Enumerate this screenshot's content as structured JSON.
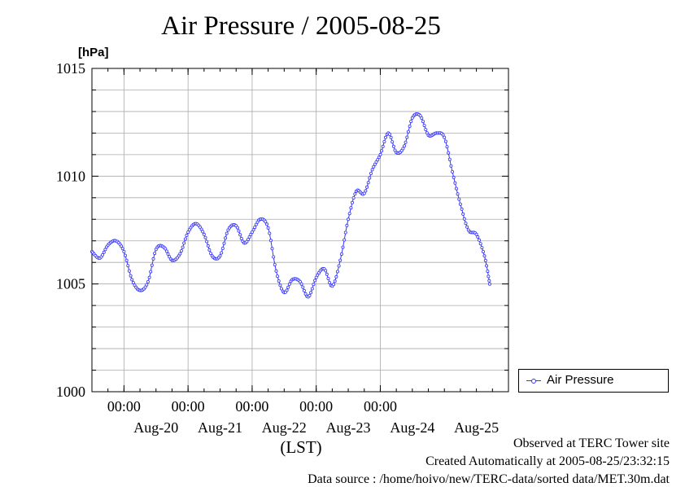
{
  "title": "Air Pressure / 2005-08-25",
  "colors": {
    "series": "#3333ff",
    "grid": "#aaaaaa",
    "axis": "#000000"
  },
  "chart_data": {
    "type": "line",
    "title": "Air Pressure / 2005-08-25",
    "ylabel": "[hPa]",
    "xlabel": "(LST)",
    "ylim": [
      1000,
      1015
    ],
    "xlim": [
      "2005-08-19T12:00",
      "2005-08-25T24:00"
    ],
    "y_ticks": [
      "1000",
      "1005",
      "1010",
      "1015"
    ],
    "x_time_ticks": [
      {
        "time": "2005-08-20T00:00",
        "label": "00:00"
      },
      {
        "time": "2005-08-21T00:00",
        "label": "00:00"
      },
      {
        "time": "2005-08-22T00:00",
        "label": "00:00"
      },
      {
        "time": "2005-08-23T00:00",
        "label": "00:00"
      },
      {
        "time": "2005-08-24T00:00",
        "label": "00:00"
      }
    ],
    "x_date_labels": [
      {
        "time": "2005-08-20T12:00",
        "label": "Aug-20"
      },
      {
        "time": "2005-08-21T12:00",
        "label": "Aug-21"
      },
      {
        "time": "2005-08-22T12:00",
        "label": "Aug-22"
      },
      {
        "time": "2005-08-23T12:00",
        "label": "Aug-23"
      },
      {
        "time": "2005-08-24T12:00",
        "label": "Aug-24"
      },
      {
        "time": "2005-08-25T12:00",
        "label": "Aug-25"
      }
    ],
    "grid": true,
    "legend": "right",
    "series": [
      {
        "name": "Air Pressure",
        "points": [
          {
            "x": "2005-08-19T12:00",
            "y": 1006.5
          },
          {
            "x": "2005-08-19T15:00",
            "y": 1006.2
          },
          {
            "x": "2005-08-19T18:00",
            "y": 1006.8
          },
          {
            "x": "2005-08-19T21:00",
            "y": 1007.0
          },
          {
            "x": "2005-08-20T00:00",
            "y": 1006.5
          },
          {
            "x": "2005-08-20T03:00",
            "y": 1005.2
          },
          {
            "x": "2005-08-20T06:00",
            "y": 1004.7
          },
          {
            "x": "2005-08-20T09:00",
            "y": 1005.1
          },
          {
            "x": "2005-08-20T12:00",
            "y": 1006.6
          },
          {
            "x": "2005-08-20T15:00",
            "y": 1006.7
          },
          {
            "x": "2005-08-20T18:00",
            "y": 1006.1
          },
          {
            "x": "2005-08-20T21:00",
            "y": 1006.4
          },
          {
            "x": "2005-08-21T00:00",
            "y": 1007.4
          },
          {
            "x": "2005-08-21T03:00",
            "y": 1007.8
          },
          {
            "x": "2005-08-21T06:00",
            "y": 1007.3
          },
          {
            "x": "2005-08-21T09:00",
            "y": 1006.3
          },
          {
            "x": "2005-08-21T12:00",
            "y": 1006.3
          },
          {
            "x": "2005-08-21T15:00",
            "y": 1007.5
          },
          {
            "x": "2005-08-21T18:00",
            "y": 1007.7
          },
          {
            "x": "2005-08-21T21:00",
            "y": 1006.9
          },
          {
            "x": "2005-08-22T00:00",
            "y": 1007.4
          },
          {
            "x": "2005-08-22T03:00",
            "y": 1008.0
          },
          {
            "x": "2005-08-22T06:00",
            "y": 1007.6
          },
          {
            "x": "2005-08-22T09:00",
            "y": 1005.6
          },
          {
            "x": "2005-08-22T12:00",
            "y": 1004.6
          },
          {
            "x": "2005-08-22T15:00",
            "y": 1005.2
          },
          {
            "x": "2005-08-22T18:00",
            "y": 1005.1
          },
          {
            "x": "2005-08-22T21:00",
            "y": 1004.4
          },
          {
            "x": "2005-08-23T00:00",
            "y": 1005.3
          },
          {
            "x": "2005-08-23T03:00",
            "y": 1005.7
          },
          {
            "x": "2005-08-23T06:00",
            "y": 1004.9
          },
          {
            "x": "2005-08-23T09:00",
            "y": 1006.1
          },
          {
            "x": "2005-08-23T12:00",
            "y": 1008.0
          },
          {
            "x": "2005-08-23T15:00",
            "y": 1009.3
          },
          {
            "x": "2005-08-23T18:00",
            "y": 1009.2
          },
          {
            "x": "2005-08-23T21:00",
            "y": 1010.3
          },
          {
            "x": "2005-08-24T00:00",
            "y": 1011.0
          },
          {
            "x": "2005-08-24T03:00",
            "y": 1012.0
          },
          {
            "x": "2005-08-24T06:00",
            "y": 1011.1
          },
          {
            "x": "2005-08-24T09:00",
            "y": 1011.4
          },
          {
            "x": "2005-08-24T12:00",
            "y": 1012.7
          },
          {
            "x": "2005-08-24T15:00",
            "y": 1012.8
          },
          {
            "x": "2005-08-24T18:00",
            "y": 1011.9
          },
          {
            "x": "2005-08-24T21:00",
            "y": 1012.0
          },
          {
            "x": "2005-08-25T00:00",
            "y": 1011.8
          },
          {
            "x": "2005-08-25T03:00",
            "y": 1010.2
          },
          {
            "x": "2005-08-25T06:00",
            "y": 1008.7
          },
          {
            "x": "2005-08-25T09:00",
            "y": 1007.5
          },
          {
            "x": "2005-08-25T12:00",
            "y": 1007.3
          },
          {
            "x": "2005-08-25T15:00",
            "y": 1006.3
          },
          {
            "x": "2005-08-25T17:00",
            "y": 1005.0
          }
        ]
      }
    ]
  },
  "legend": {
    "label": "Air Pressure"
  },
  "footer": {
    "site": "Observed at TERC Tower site",
    "created": "Created Automatically at 2005-08-25/23:32:15",
    "source": "Data source : /home/hoivo/new/TERC-data/sorted  data/MET.30m.dat"
  }
}
